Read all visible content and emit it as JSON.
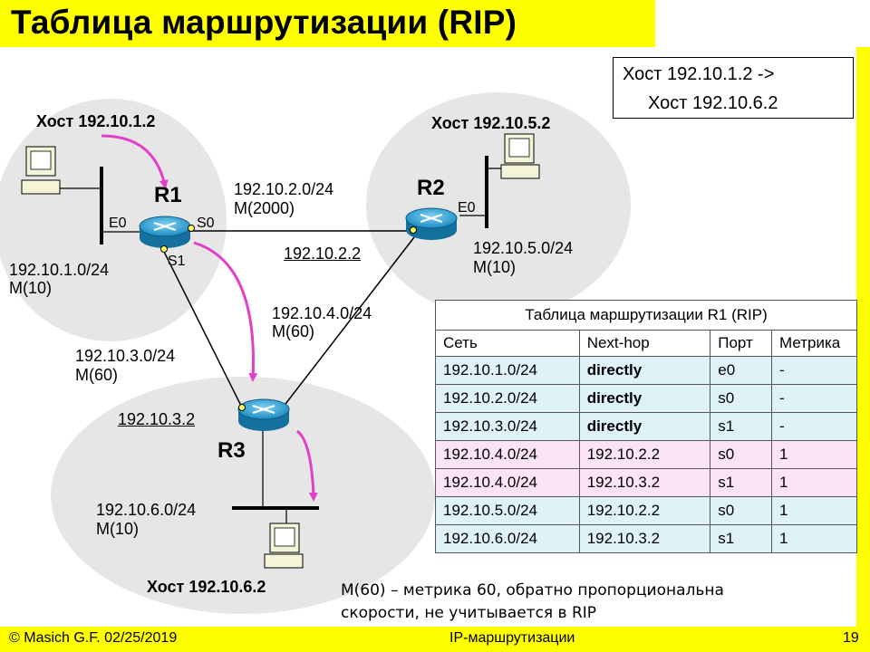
{
  "title": "Таблица маршрутизации (RIP)",
  "route_box": {
    "line1": "Хост 192.10.1.2  ->",
    "line2": "Хост 192.10.6.2"
  },
  "hosts": {
    "h1": "Хост 192.10.1.2",
    "h5": "Хост 192.10.5.2",
    "h6": "Хост 192.10.6.2"
  },
  "routers": {
    "r1": "R1",
    "r2": "R2",
    "r3": "R3"
  },
  "ports": {
    "r1_e0": "E0",
    "r1_s0": "S0",
    "r1_s1": "S1",
    "r2_e0": "E0"
  },
  "networks": {
    "n1": {
      "addr": "192.10.1.0/24",
      "metric": "M(10)"
    },
    "n2": {
      "addr": "192.10.2.0/24",
      "metric": "M(2000)"
    },
    "n3": {
      "addr": "192.10.3.0/24",
      "metric": "M(60)"
    },
    "n4": {
      "addr": "192.10.4.0/24",
      "metric": "M(60)"
    },
    "n5": {
      "addr": "192.10.5.0/24",
      "metric": "M(10)"
    },
    "n6": {
      "addr": "192.10.6.0/24",
      "metric": "M(10)"
    }
  },
  "interfaces": {
    "r2_s": "192.10.2.2",
    "r3_s": "192.10.3.2"
  },
  "table": {
    "caption": "Таблица маршрутизации R1 (RIP)",
    "headers": [
      "Сеть",
      "Next-hop",
      "Порт",
      "Метрика"
    ],
    "rows": [
      {
        "net": "192.10.1.0/24",
        "hop": "directly",
        "port": "e0",
        "metric": "-"
      },
      {
        "net": "192.10.2.0/24",
        "hop": "directly",
        "port": "s0",
        "metric": "-"
      },
      {
        "net": "192.10.3.0/24",
        "hop": "directly",
        "port": "s1",
        "metric": "-"
      },
      {
        "net": "192.10.4.0/24",
        "hop": "192.10.2.2",
        "port": "s0",
        "metric": "1"
      },
      {
        "net": "192.10.4.0/24",
        "hop": "192.10.3.2",
        "port": "s1",
        "metric": "1"
      },
      {
        "net": "192.10.5.0/24",
        "hop": "192.10.2.2",
        "port": "s0",
        "metric": "1"
      },
      {
        "net": "192.10.6.0/24",
        "hop": "192.10.3.2",
        "port": "s1",
        "metric": "1"
      }
    ]
  },
  "note": {
    "line1": "M(60) – метрика 60, обратно пропорциональна",
    "line2": "скорости, не учитывается в RIP"
  },
  "footer": {
    "left": "© Masich G.F. 02/25/2019",
    "center": "IP-маршрутизации",
    "right": "19"
  },
  "colors": {
    "accent": "#ffff00",
    "arrow": "#e040c8",
    "cloud": "#e6e6e6",
    "router": "#2aa3d8"
  }
}
